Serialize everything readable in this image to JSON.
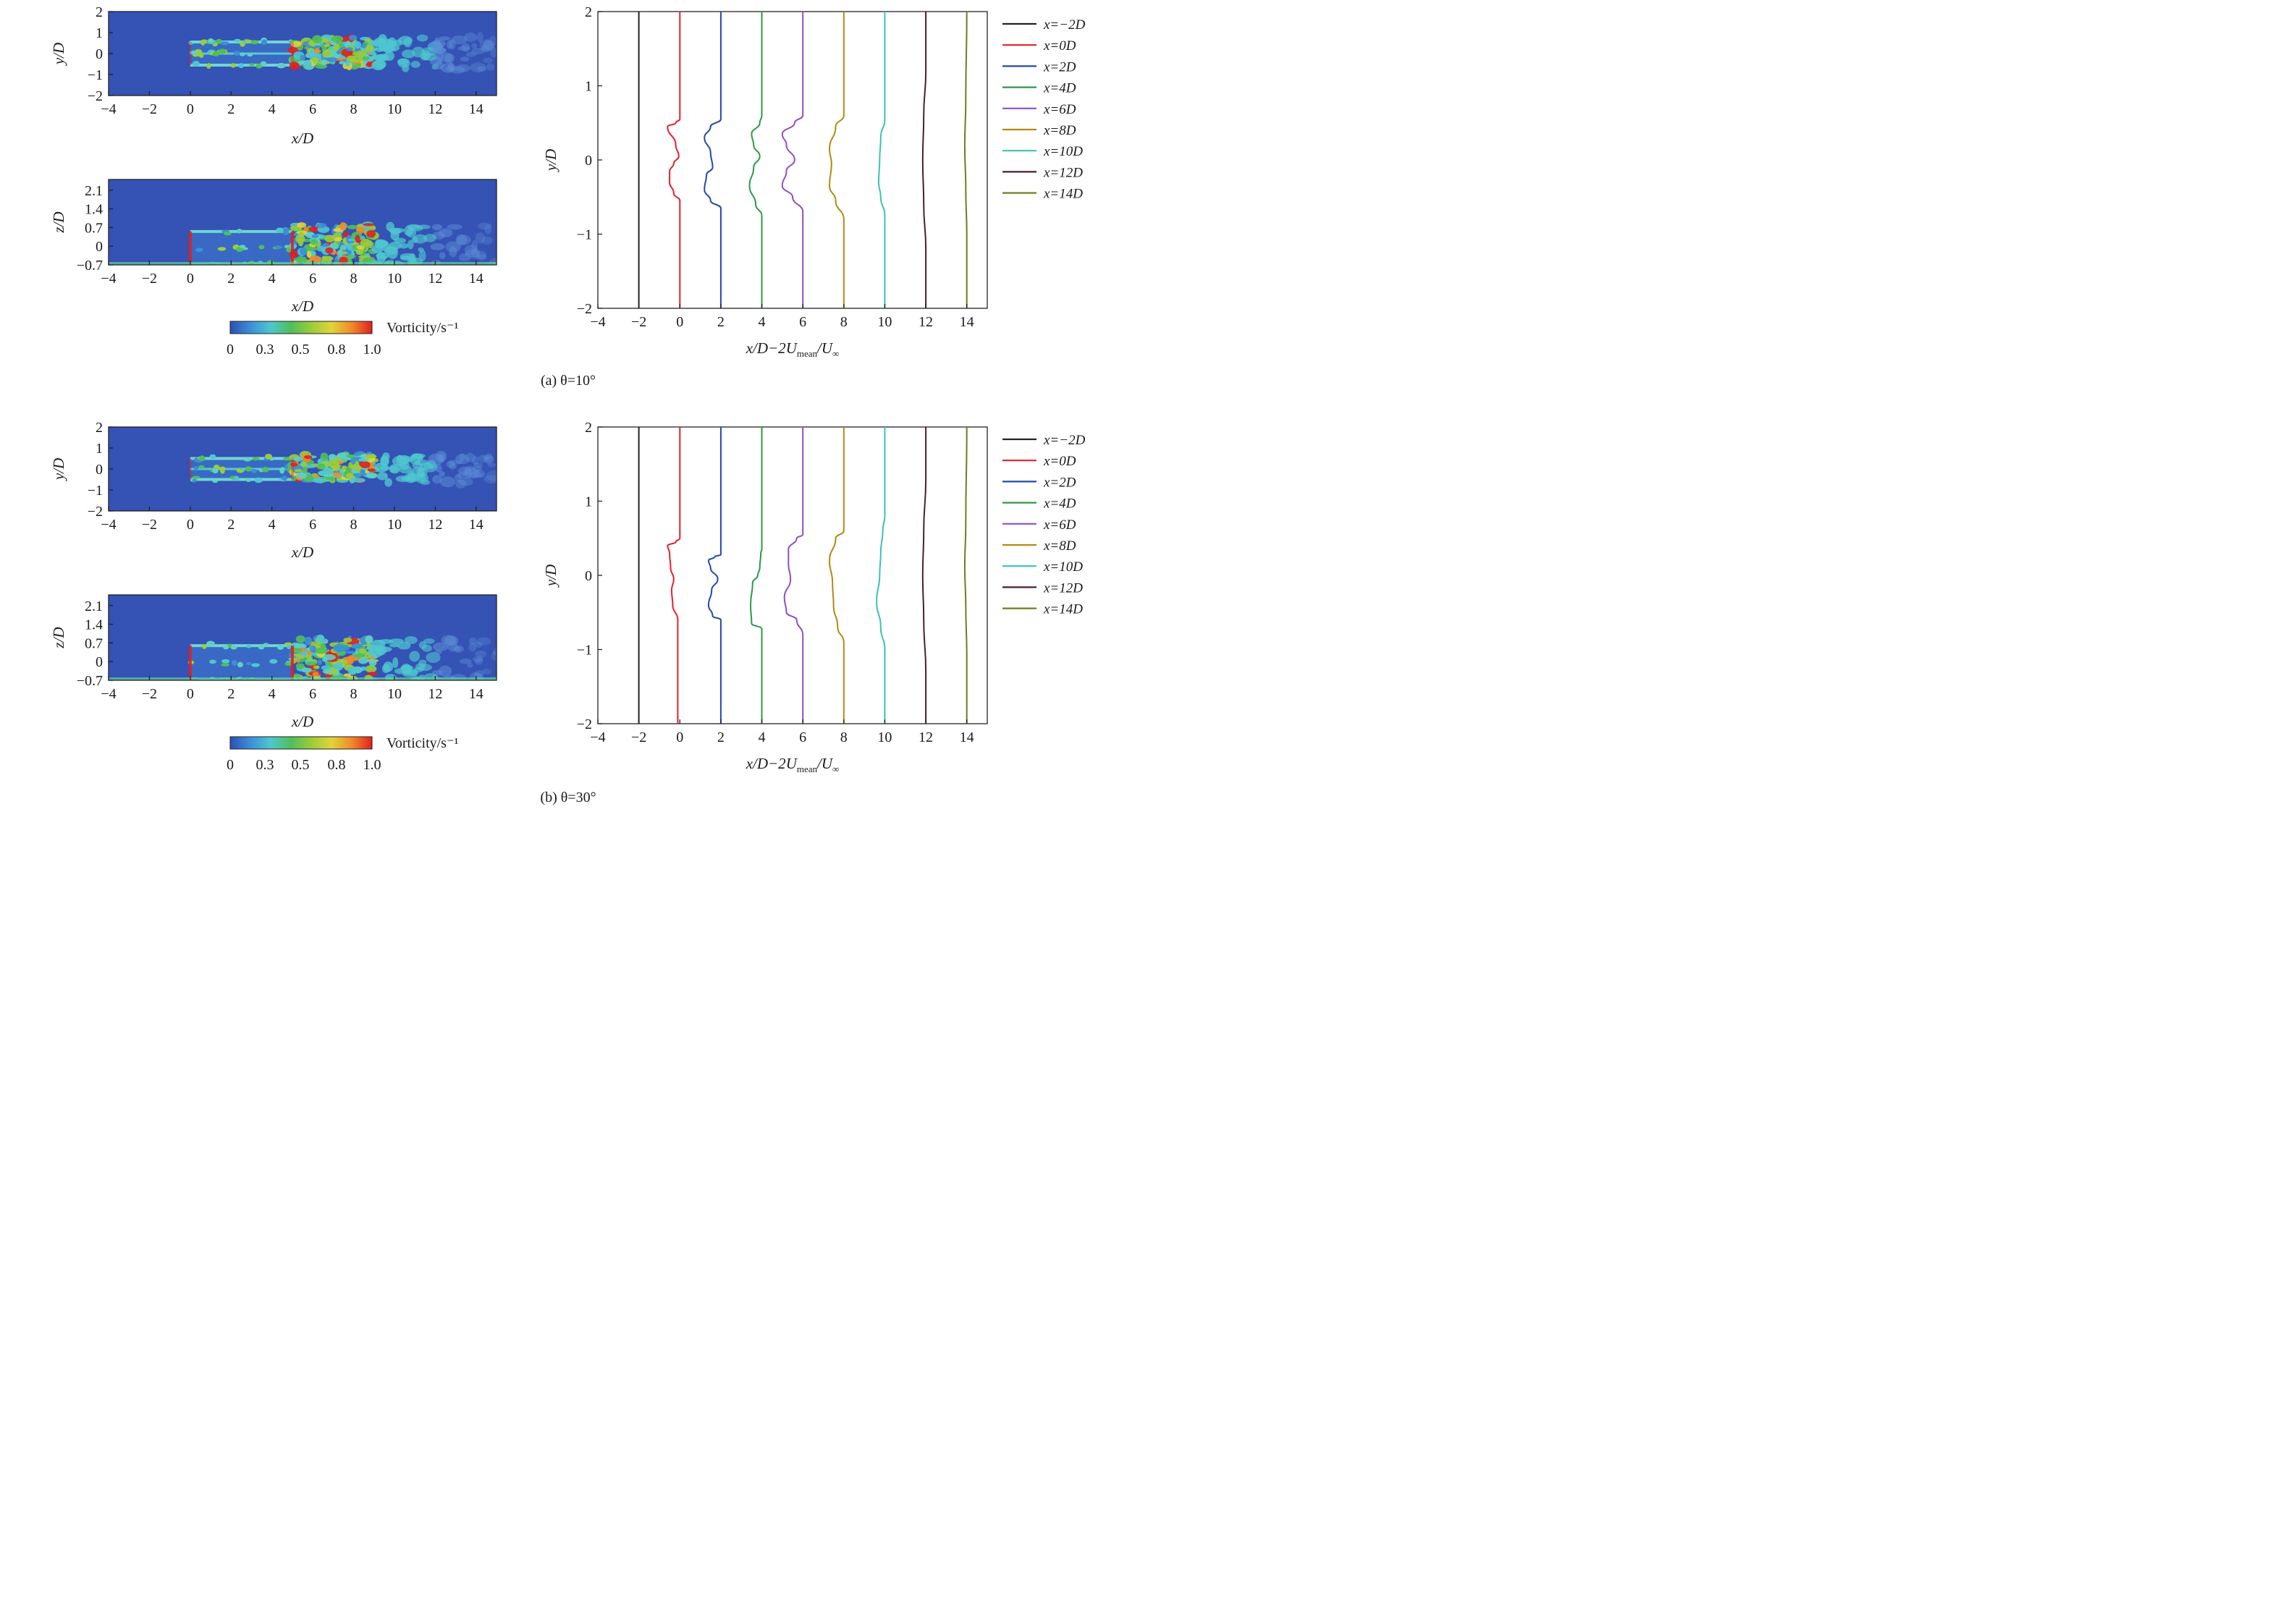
{
  "caption_a": "(a) θ=10°",
  "caption_b": "(b) θ=30°",
  "colorbar": {
    "label": "Vorticity/s⁻¹",
    "ticks": [
      "0",
      "0.3",
      "0.5",
      "0.8",
      "1.0"
    ],
    "colors": [
      "#2d4fb3",
      "#3c8fd6",
      "#4ec7cf",
      "#4fbf5b",
      "#9bcc3a",
      "#e0d43a",
      "#f08a2a",
      "#e02020"
    ]
  },
  "colors": {
    "field_background": "#3552b5",
    "x=-2D": "#222222",
    "x=0D": "#e2202c",
    "x=2D": "#2349a8",
    "x=4D": "#2a9a4a",
    "x=6D": "#8e4fc4",
    "x=8D": "#b18a13",
    "x=10D": "#3cc1b6",
    "x=12D": "#4a1f28",
    "x=14D": "#6b7f1f"
  },
  "chart_data": [
    {
      "id": "a-xy",
      "type": "heatmap",
      "field": "vorticity",
      "xlabel": "x/D",
      "ylabel": "y/D",
      "xlim": [
        -4,
        15
      ],
      "ylim": [
        -2,
        2
      ],
      "xticks": [
        "−4",
        "−2",
        "0",
        "2",
        "4",
        "6",
        "8",
        "10",
        "12",
        "14"
      ],
      "yticks": [
        "2",
        "1",
        "0",
        "−1",
        "−2"
      ],
      "xtick_values": [
        -4,
        -2,
        0,
        2,
        4,
        6,
        8,
        10,
        12,
        14
      ],
      "ytick_values": [
        2,
        1,
        0,
        -1,
        -2
      ],
      "wake": {
        "upstream_x": [
          0,
          5
        ],
        "downstream_x": [
          5,
          9
        ],
        "decay_to_x": 15,
        "half_width": 0.55
      }
    },
    {
      "id": "a-xz",
      "type": "heatmap",
      "field": "vorticity",
      "xlabel": "x/D",
      "ylabel": "z/D",
      "xlim": [
        -4,
        15
      ],
      "ylim": [
        -0.7,
        2.5
      ],
      "xticks": [
        "−4",
        "−2",
        "0",
        "2",
        "4",
        "6",
        "8",
        "10",
        "12",
        "14"
      ],
      "yticks": [
        "2.1",
        "1.4",
        "0.7",
        "0",
        "−0.7"
      ],
      "xtick_values": [
        -4,
        -2,
        0,
        2,
        4,
        6,
        8,
        10,
        12,
        14
      ],
      "ytick_values": [
        2.1,
        1.4,
        0.7,
        0,
        -0.7
      ],
      "wake": {
        "upstream_x": [
          0,
          5
        ],
        "downstream_x": [
          5,
          9
        ],
        "decay_to_x": 15,
        "top": 0.55
      }
    },
    {
      "id": "a-profiles",
      "type": "line",
      "title": "",
      "xlabel": "x/D−2U_mean/U_∞",
      "ylabel": "y/D",
      "xlim": [
        -4,
        15
      ],
      "ylim": [
        -2,
        2
      ],
      "xticks": [
        "−4",
        "−2",
        "0",
        "2",
        "4",
        "6",
        "8",
        "10",
        "12",
        "14"
      ],
      "yticks": [
        "2",
        "1",
        "0",
        "−1",
        "−2"
      ],
      "xtick_values": [
        -4,
        -2,
        0,
        2,
        4,
        6,
        8,
        10,
        12,
        14
      ],
      "ytick_values": [
        2,
        1,
        0,
        -1,
        -2
      ],
      "legend": "right",
      "series": [
        {
          "name": "x=−2D",
          "color_key": "x=-2D",
          "x0": -2,
          "points": [
            [
              -2,
              -2
            ],
            [
              -2,
              2
            ]
          ]
        },
        {
          "name": "x=0D",
          "color_key": "x=0D",
          "x0": 0,
          "points": [
            [
              0,
              -2
            ],
            [
              0,
              -0.55
            ],
            [
              -0.3,
              -0.45
            ],
            [
              -0.5,
              -0.3
            ],
            [
              -0.5,
              -0.15
            ],
            [
              -0.3,
              -0.05
            ],
            [
              -0.05,
              0.05
            ],
            [
              -0.2,
              0.2
            ],
            [
              -0.6,
              0.45
            ],
            [
              -0.2,
              0.5
            ],
            [
              0,
              0.55
            ],
            [
              0,
              2
            ]
          ]
        },
        {
          "name": "x=2D",
          "color_key": "x=2D",
          "x0": 2,
          "points": [
            [
              2,
              -2
            ],
            [
              2,
              -0.65
            ],
            [
              1.5,
              -0.55
            ],
            [
              1.2,
              -0.4
            ],
            [
              1.3,
              -0.2
            ],
            [
              1.6,
              -0.1
            ],
            [
              1.5,
              0.1
            ],
            [
              1.2,
              0.3
            ],
            [
              1.5,
              0.45
            ],
            [
              2,
              0.55
            ],
            [
              2,
              2
            ]
          ]
        },
        {
          "name": "x=4D",
          "color_key": "x=4D",
          "x0": 4,
          "points": [
            [
              4,
              -2
            ],
            [
              4,
              -0.75
            ],
            [
              3.7,
              -0.6
            ],
            [
              3.4,
              -0.35
            ],
            [
              3.6,
              -0.1
            ],
            [
              3.9,
              0.05
            ],
            [
              3.6,
              0.2
            ],
            [
              3.5,
              0.35
            ],
            [
              3.9,
              0.5
            ],
            [
              4,
              0.6
            ],
            [
              4,
              2
            ]
          ]
        },
        {
          "name": "x=6D",
          "color_key": "x=6D",
          "x0": 6,
          "points": [
            [
              6,
              -2
            ],
            [
              6,
              -0.7
            ],
            [
              5.5,
              -0.5
            ],
            [
              5.0,
              -0.35
            ],
            [
              5.2,
              -0.15
            ],
            [
              5.6,
              0
            ],
            [
              5.2,
              0.2
            ],
            [
              5.0,
              0.35
            ],
            [
              5.6,
              0.5
            ],
            [
              6,
              0.6
            ],
            [
              6,
              2
            ]
          ]
        },
        {
          "name": "x=8D",
          "color_key": "x=8D",
          "x0": 8,
          "points": [
            [
              8,
              -2
            ],
            [
              8,
              -0.8
            ],
            [
              7.6,
              -0.55
            ],
            [
              7.3,
              -0.35
            ],
            [
              7.4,
              -0.05
            ],
            [
              7.3,
              0.15
            ],
            [
              7.6,
              0.45
            ],
            [
              8,
              0.6
            ],
            [
              8,
              2
            ]
          ]
        },
        {
          "name": "x=10D",
          "color_key": "x=10D",
          "x0": 10,
          "points": [
            [
              10,
              -2
            ],
            [
              10,
              -0.75
            ],
            [
              9.8,
              -0.5
            ],
            [
              9.7,
              -0.3
            ],
            [
              9.75,
              0
            ],
            [
              9.8,
              0.3
            ],
            [
              10,
              0.55
            ],
            [
              10,
              2
            ]
          ]
        },
        {
          "name": "x=12D",
          "color_key": "x=12D",
          "x0": 12,
          "points": [
            [
              12,
              -2
            ],
            [
              12,
              -1.2
            ],
            [
              11.9,
              -0.6
            ],
            [
              11.85,
              0
            ],
            [
              11.9,
              0.6
            ],
            [
              12,
              1.2
            ],
            [
              12,
              2
            ]
          ]
        },
        {
          "name": "x=14D",
          "color_key": "x=14D",
          "x0": 14,
          "points": [
            [
              14,
              -2
            ],
            [
              14,
              -1.0
            ],
            [
              13.95,
              -0.4
            ],
            [
              13.9,
              0.2
            ],
            [
              13.95,
              0.8
            ],
            [
              14,
              2
            ]
          ]
        }
      ]
    },
    {
      "id": "b-xy",
      "type": "heatmap",
      "field": "vorticity",
      "xlabel": "x/D",
      "ylabel": "y/D",
      "xlim": [
        -4,
        15
      ],
      "ylim": [
        -2,
        2
      ],
      "xticks": [
        "−4",
        "−2",
        "0",
        "2",
        "4",
        "6",
        "8",
        "10",
        "12",
        "14"
      ],
      "yticks": [
        "2",
        "1",
        "0",
        "−1",
        "−2"
      ],
      "xtick_values": [
        -4,
        -2,
        0,
        2,
        4,
        6,
        8,
        10,
        12,
        14
      ],
      "ytick_values": [
        2,
        1,
        0,
        -1,
        -2
      ],
      "wake": {
        "upstream_x": [
          0,
          5
        ],
        "downstream_x": [
          5,
          9
        ],
        "decay_to_x": 15,
        "half_width": 0.5
      }
    },
    {
      "id": "b-xz",
      "type": "heatmap",
      "field": "vorticity",
      "xlabel": "x/D",
      "ylabel": "z/D",
      "xlim": [
        -4,
        15
      ],
      "ylim": [
        -0.7,
        2.5
      ],
      "xticks": [
        "−4",
        "−2",
        "0",
        "2",
        "4",
        "6",
        "8",
        "10",
        "12",
        "14"
      ],
      "yticks": [
        "2.1",
        "1.4",
        "0.7",
        "0",
        "−0.7"
      ],
      "xtick_values": [
        -4,
        -2,
        0,
        2,
        4,
        6,
        8,
        10,
        12,
        14
      ],
      "ytick_values": [
        2.1,
        1.4,
        0.7,
        0,
        -0.7
      ],
      "wake": {
        "upstream_x": [
          0,
          5
        ],
        "downstream_x": [
          5,
          9
        ],
        "decay_to_x": 15,
        "top": 0.6
      }
    },
    {
      "id": "b-profiles",
      "type": "line",
      "title": "",
      "xlabel": "x/D−2U_mean/U_∞",
      "ylabel": "y/D",
      "xlim": [
        -4,
        15
      ],
      "ylim": [
        -2,
        2
      ],
      "xticks": [
        "−4",
        "−2",
        "0",
        "2",
        "4",
        "6",
        "8",
        "10",
        "12",
        "14"
      ],
      "yticks": [
        "2",
        "1",
        "0",
        "−1",
        "−2"
      ],
      "xtick_values": [
        -4,
        -2,
        0,
        2,
        4,
        6,
        8,
        10,
        12,
        14
      ],
      "ytick_values": [
        2,
        1,
        0,
        -1,
        -2
      ],
      "legend": "right",
      "series": [
        {
          "name": "x=−2D",
          "color_key": "x=-2D",
          "x0": -2,
          "points": [
            [
              -2,
              -2
            ],
            [
              -2,
              2
            ]
          ]
        },
        {
          "name": "x=0D",
          "color_key": "x=0D",
          "x0": 0,
          "points": [
            [
              -0.1,
              -2
            ],
            [
              -0.1,
              -0.6
            ],
            [
              -0.35,
              -0.4
            ],
            [
              -0.4,
              -0.2
            ],
            [
              -0.3,
              -0.05
            ],
            [
              -0.45,
              0.1
            ],
            [
              -0.5,
              0.3
            ],
            [
              -0.6,
              0.4
            ],
            [
              -0.2,
              0.45
            ],
            [
              0,
              0.5
            ],
            [
              0,
              2
            ]
          ]
        },
        {
          "name": "x=2D",
          "color_key": "x=2D",
          "x0": 2,
          "points": [
            [
              2,
              -2
            ],
            [
              2,
              -0.6
            ],
            [
              1.6,
              -0.55
            ],
            [
              1.4,
              -0.4
            ],
            [
              1.55,
              -0.2
            ],
            [
              1.85,
              -0.05
            ],
            [
              1.5,
              0.1
            ],
            [
              1.4,
              0.2
            ],
            [
              1.7,
              0.25
            ],
            [
              2,
              0.28
            ],
            [
              2,
              2
            ]
          ]
        },
        {
          "name": "x=4D",
          "color_key": "x=4D",
          "x0": 4,
          "points": [
            [
              4,
              -2
            ],
            [
              4,
              -0.72
            ],
            [
              3.5,
              -0.65
            ],
            [
              3.45,
              -0.4
            ],
            [
              3.55,
              -0.1
            ],
            [
              3.8,
              0
            ],
            [
              3.9,
              0.1
            ],
            [
              3.95,
              0.3
            ],
            [
              4,
              0.35
            ],
            [
              4,
              2
            ]
          ]
        },
        {
          "name": "x=6D",
          "color_key": "x=6D",
          "x0": 6,
          "points": [
            [
              6,
              -2
            ],
            [
              6,
              -0.8
            ],
            [
              5.7,
              -0.6
            ],
            [
              5.2,
              -0.5
            ],
            [
              5.1,
              -0.3
            ],
            [
              5.4,
              -0.05
            ],
            [
              5.3,
              0.15
            ],
            [
              5.3,
              0.35
            ],
            [
              5.7,
              0.5
            ],
            [
              6,
              0.55
            ],
            [
              6,
              2
            ]
          ]
        },
        {
          "name": "x=8D",
          "color_key": "x=8D",
          "x0": 8,
          "points": [
            [
              8,
              -2
            ],
            [
              8,
              -0.9
            ],
            [
              7.7,
              -0.7
            ],
            [
              7.5,
              -0.4
            ],
            [
              7.45,
              -0.1
            ],
            [
              7.3,
              0.2
            ],
            [
              7.6,
              0.5
            ],
            [
              8,
              0.6
            ],
            [
              8,
              2
            ]
          ]
        },
        {
          "name": "x=10D",
          "color_key": "x=10D",
          "x0": 10,
          "points": [
            [
              10,
              -2
            ],
            [
              10,
              -1.0
            ],
            [
              9.8,
              -0.7
            ],
            [
              9.6,
              -0.35
            ],
            [
              9.75,
              0
            ],
            [
              9.8,
              0.3
            ],
            [
              9.9,
              0.6
            ],
            [
              10,
              0.8
            ],
            [
              10,
              2
            ]
          ]
        },
        {
          "name": "x=12D",
          "color_key": "x=12D",
          "x0": 12,
          "points": [
            [
              12,
              -2
            ],
            [
              12,
              -1.3
            ],
            [
              11.9,
              -0.6
            ],
            [
              11.85,
              0
            ],
            [
              11.9,
              0.6
            ],
            [
              12,
              1.3
            ],
            [
              12,
              2
            ]
          ]
        },
        {
          "name": "x=14D",
          "color_key": "x=14D",
          "x0": 14,
          "points": [
            [
              14,
              -2
            ],
            [
              14,
              -1.1
            ],
            [
              13.95,
              -0.4
            ],
            [
              13.9,
              0.1
            ],
            [
              13.95,
              0.7
            ],
            [
              14,
              2
            ]
          ]
        }
      ]
    }
  ]
}
